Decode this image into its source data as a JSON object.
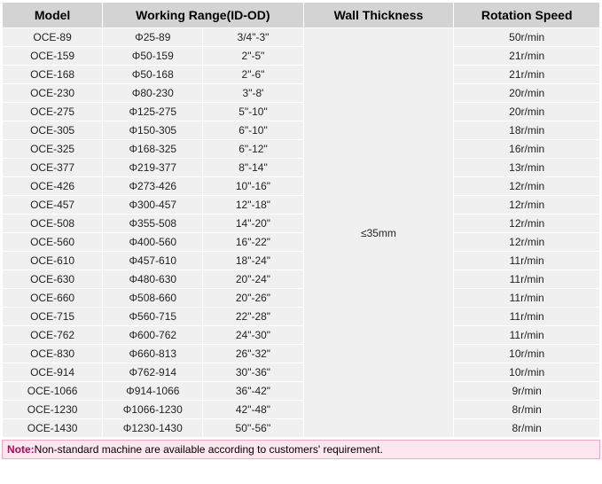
{
  "table": {
    "headers": {
      "model": "Model",
      "working_range": "Working Range(ID-OD)",
      "wall_thickness": "Wall Thickness",
      "rotation_speed": "Rotation Speed"
    },
    "wall_thickness_value": "≤35mm",
    "rows": [
      {
        "model": "OCE-89",
        "range_id": "Φ25-89",
        "range_od": "3/4\"-3\"",
        "speed": "50r/min"
      },
      {
        "model": "OCE-159",
        "range_id": "Φ50-159",
        "range_od": "2\"-5\"",
        "speed": "21r/min"
      },
      {
        "model": "OCE-168",
        "range_id": "Φ50-168",
        "range_od": "2\"-6\"",
        "speed": "21r/min"
      },
      {
        "model": "OCE-230",
        "range_id": "Φ80-230",
        "range_od": "3\"-8'",
        "speed": "20r/min"
      },
      {
        "model": "OCE-275",
        "range_id": "Φ125-275",
        "range_od": "5\"-10\"",
        "speed": "20r/min"
      },
      {
        "model": "OCE-305",
        "range_id": "Φ150-305",
        "range_od": "6\"-10\"",
        "speed": "18r/min"
      },
      {
        "model": "OCE-325",
        "range_id": "Φ168-325",
        "range_od": "6\"-12\"",
        "speed": "16r/min"
      },
      {
        "model": "OCE-377",
        "range_id": "Φ219-377",
        "range_od": "8\"-14\"",
        "speed": "13r/min"
      },
      {
        "model": "OCE-426",
        "range_id": "Φ273-426",
        "range_od": "10\"-16\"",
        "speed": "12r/min"
      },
      {
        "model": "OCE-457",
        "range_id": "Φ300-457",
        "range_od": "12\"-18\"",
        "speed": "12r/min"
      },
      {
        "model": "OCE-508",
        "range_id": "Φ355-508",
        "range_od": "14\"-20\"",
        "speed": "12r/min"
      },
      {
        "model": "OCE-560",
        "range_id": "Φ400-560",
        "range_od": "16\"-22\"",
        "speed": "12r/min"
      },
      {
        "model": "OCE-610",
        "range_id": "Φ457-610",
        "range_od": "18\"-24\"",
        "speed": "11r/min"
      },
      {
        "model": "OCE-630",
        "range_id": "Φ480-630",
        "range_od": "20\"-24\"",
        "speed": "11r/min"
      },
      {
        "model": "OCE-660",
        "range_id": "Φ508-660",
        "range_od": "20\"-26\"",
        "speed": "11r/min"
      },
      {
        "model": "OCE-715",
        "range_id": "Φ560-715",
        "range_od": "22\"-28\"",
        "speed": "11r/min"
      },
      {
        "model": "OCE-762",
        "range_id": "Φ600-762",
        "range_od": "24\"-30\"",
        "speed": "11r/min"
      },
      {
        "model": "OCE-830",
        "range_id": "Φ660-813",
        "range_od": "26\"-32\"",
        "speed": "10r/min"
      },
      {
        "model": "OCE-914",
        "range_id": "Φ762-914",
        "range_od": "30\"-36\"",
        "speed": "10r/min"
      },
      {
        "model": "OCE-1066",
        "range_id": "Φ914-1066",
        "range_od": "36\"-42\"",
        "speed": "9r/min"
      },
      {
        "model": "OCE-1230",
        "range_id": "Φ1066-1230",
        "range_od": "42\"-48\"",
        "speed": "8r/min"
      },
      {
        "model": "OCE-1430",
        "range_id": "Φ1230-1430",
        "range_od": "50''-56''",
        "speed": "8r/min"
      }
    ]
  },
  "note": {
    "label": "Note:",
    "text": "Non-standard machine are available according to customers' requirement."
  },
  "style": {
    "header_bg": "#d3d3d3",
    "cell_bg": "#f0f0f0",
    "border_color": "#ffffff",
    "note_bg": "#fde6ef",
    "note_border": "#f2a6c2",
    "note_label_color": "#c60059",
    "header_fontsize": 14,
    "cell_fontsize": 12
  }
}
